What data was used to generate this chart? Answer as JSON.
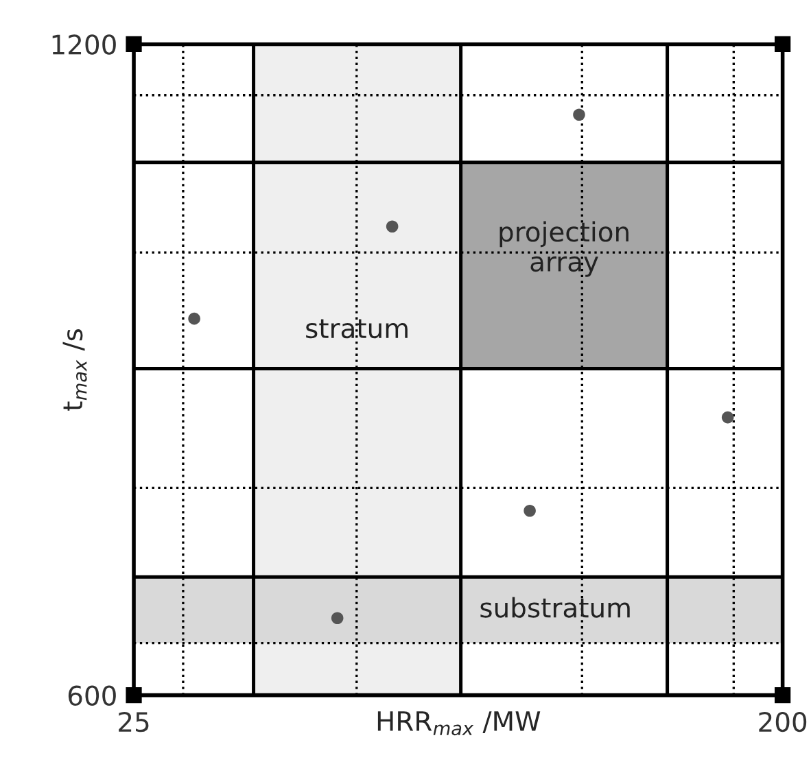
{
  "chart_data": {
    "type": "scatter",
    "xlabel": "HRR$_{max}$ /MW",
    "ylabel": "t$_{max}$ /s",
    "xlim": [
      25,
      200
    ],
    "ylim": [
      600,
      1200
    ],
    "xticks": [
      25,
      200
    ],
    "yticks": [
      600,
      1200
    ],
    "series": [
      {
        "color": "#555555",
        "marker": "circle",
        "x": [
          41.3,
          94.7,
          145.1,
          131.8,
          79.9,
          185.2
        ],
        "values": [
          947,
          1032,
          1135,
          770,
          671,
          856
        ]
      },
      {
        "color": "#000000",
        "marker": "square",
        "x": [
          25,
          200,
          25,
          200
        ],
        "values": [
          1200,
          1200,
          600,
          600
        ]
      }
    ],
    "bands": [
      {
        "axis": "x",
        "from": 57.3,
        "to": 113.2,
        "color": "#efefef",
        "label": "stratum"
      },
      {
        "axis": "y",
        "from": 648,
        "to": 709,
        "color": "#d9d9d9",
        "label": "substratum"
      }
    ],
    "ref_lines": [
      {
        "axis": "x",
        "value": 57.3,
        "line_style": "solid"
      },
      {
        "axis": "x",
        "value": 113.2,
        "line_style": "solid"
      },
      {
        "axis": "x",
        "value": 168.9,
        "line_style": "solid"
      },
      {
        "axis": "y",
        "value": 709,
        "line_style": "solid"
      },
      {
        "axis": "y",
        "value": 901,
        "line_style": "solid"
      },
      {
        "axis": "y",
        "value": 1091,
        "line_style": "solid"
      },
      {
        "axis": "x",
        "value": 38.3,
        "line_style": "dotted"
      },
      {
        "axis": "x",
        "value": 85.1,
        "line_style": "dotted"
      },
      {
        "axis": "x",
        "value": 145.9,
        "line_style": "dotted"
      },
      {
        "axis": "x",
        "value": 186.8,
        "line_style": "dotted"
      },
      {
        "axis": "y",
        "value": 648,
        "line_style": "dotted"
      },
      {
        "axis": "y",
        "value": 791,
        "line_style": "dotted"
      },
      {
        "axis": "y",
        "value": 1008,
        "line_style": "dotted"
      },
      {
        "axis": "y",
        "value": 1153,
        "line_style": "dotted"
      }
    ],
    "annotations": [
      "projection\narray"
    ]
  }
}
